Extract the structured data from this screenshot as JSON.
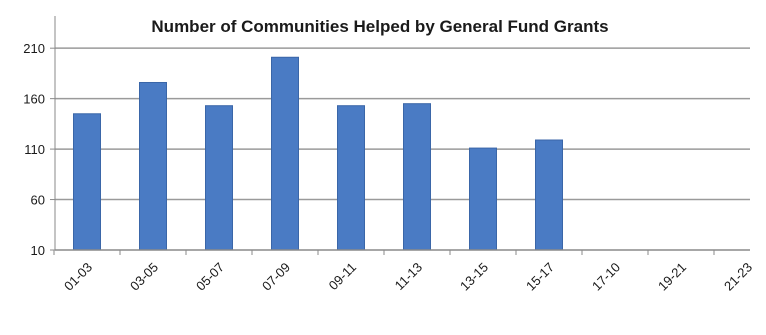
{
  "chart_data": {
    "type": "bar",
    "title": "Number of Communities Helped by General Fund Grants",
    "xlabel": "",
    "ylabel": "",
    "categories": [
      "01-03",
      "03-05",
      "05-07",
      "07-09",
      "09-11",
      "11-13",
      "13-15",
      "15-17",
      "17-10",
      "19-21",
      "21-23"
    ],
    "values": [
      145,
      176,
      153,
      201,
      153,
      155,
      111,
      119,
      null,
      null,
      null
    ],
    "yticks": [
      10,
      60,
      110,
      160,
      210
    ],
    "ylim": [
      10,
      230
    ],
    "grid": true,
    "legend": "none",
    "colors": {
      "bar": "#4a7bc4",
      "bar_edge": "#3a66a8",
      "grid": "#9a9a9a",
      "axis": "#8a8a8a",
      "text": "#1a1a1a"
    }
  }
}
